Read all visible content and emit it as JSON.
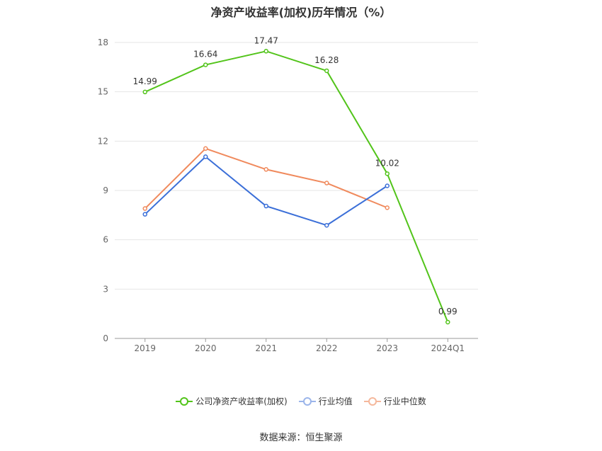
{
  "chart_data": {
    "type": "line",
    "title": "净资产收益率(加权)历年情况（%）",
    "categories": [
      "2019",
      "2020",
      "2021",
      "2022",
      "2023",
      "2024Q1"
    ],
    "series": [
      {
        "name": "公司净资产收益率(加权)",
        "color": "#52c41a",
        "values": [
          14.99,
          16.64,
          17.47,
          16.28,
          10.02,
          0.99
        ],
        "show_labels": true
      },
      {
        "name": "行业均值",
        "color": "#3b6fd8",
        "values": [
          7.55,
          11.05,
          8.05,
          6.88,
          9.28,
          null
        ],
        "show_labels": false
      },
      {
        "name": "行业中位数",
        "color": "#f08a5d",
        "values": [
          7.9,
          11.55,
          10.28,
          9.45,
          7.95,
          null
        ],
        "show_labels": false
      }
    ],
    "ylim": [
      0,
      18
    ],
    "yticks": [
      0,
      3,
      6,
      9,
      12,
      15,
      18
    ],
    "grid": true,
    "legend_position": "bottom"
  },
  "source": "数据来源：恒生聚源"
}
